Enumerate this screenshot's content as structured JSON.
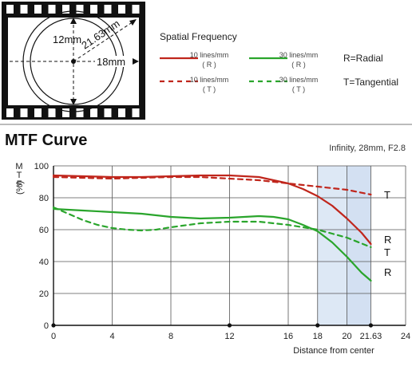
{
  "diagram": {
    "dim_12": "12mm",
    "dim_21_63": "21.63mm",
    "dim_18": "18mm"
  },
  "legend": {
    "title": "Spatial Frequency",
    "items": [
      {
        "label": "10 lines/mm",
        "sub": "( R )",
        "color": "#c0261c",
        "dash": "solid"
      },
      {
        "label": "30 lines/mm",
        "sub": "( R )",
        "color": "#2aa52c",
        "dash": "solid"
      },
      {
        "label": "10 lines/mm",
        "sub": "( T )",
        "color": "#c0261c",
        "dash": "dashed"
      },
      {
        "label": "30 lines/mm",
        "sub": "( T )",
        "color": "#2aa52c",
        "dash": "dashed"
      }
    ],
    "key_radial": "R=Radial",
    "key_tangential": "T=Tangential"
  },
  "chart_data": {
    "type": "line",
    "title": "MTF Curve",
    "subtitle": "Infinity, 28mm, F2.8",
    "xlabel": "Distance from center",
    "ylabel": "MTF (%)",
    "xlim": [
      0,
      24
    ],
    "ylim": [
      0,
      100
    ],
    "x_ticks": [
      0,
      4,
      8,
      12,
      16,
      18,
      20,
      21.63,
      24
    ],
    "x_tick_labels": [
      "0",
      "4",
      "8",
      "12",
      "16",
      "18",
      "20",
      "21.63",
      "24"
    ],
    "y_ticks": [
      0,
      20,
      40,
      60,
      80,
      100
    ],
    "y_tick_labels": [
      "0",
      "20",
      "40",
      "60",
      "80",
      "100"
    ],
    "x_dot_marks": [
      12,
      18,
      21.63
    ],
    "shaded_regions": [
      [
        18,
        20
      ],
      [
        20,
        21.63
      ]
    ],
    "grid": true,
    "series": [
      {
        "key": "r10",
        "color": "#c0261c",
        "dash": "solid",
        "end_label": "R",
        "x": [
          0,
          2,
          4,
          6,
          8,
          10,
          12,
          14,
          16,
          17,
          18,
          19,
          20,
          21,
          21.63
        ],
        "y": [
          94,
          93.5,
          93,
          93,
          93.5,
          94,
          94,
          93,
          89,
          85.5,
          81,
          75,
          67,
          58,
          51
        ]
      },
      {
        "key": "t10",
        "color": "#c0261c",
        "dash": "dashed",
        "end_label": "T",
        "x": [
          0,
          2,
          4,
          6,
          8,
          10,
          12,
          14,
          16,
          18,
          20,
          21.63
        ],
        "y": [
          93,
          92.5,
          92,
          92.5,
          93,
          93,
          92,
          91,
          89,
          87,
          85,
          82
        ]
      },
      {
        "key": "r30",
        "color": "#2aa52c",
        "dash": "solid",
        "end_label": "R",
        "x": [
          0,
          2,
          4,
          6,
          8,
          10,
          12,
          14,
          15,
          16,
          17,
          18,
          19,
          20,
          21,
          21.63
        ],
        "y": [
          73,
          72,
          71,
          70,
          68,
          67,
          67.5,
          68.5,
          68,
          66.5,
          63,
          59,
          52,
          43,
          33,
          28
        ]
      },
      {
        "key": "t30",
        "color": "#2aa52c",
        "dash": "dashed",
        "end_label": "T",
        "x": [
          0,
          1,
          2,
          3,
          4,
          5,
          6,
          7,
          8,
          10,
          12,
          14,
          16,
          18,
          19,
          20,
          21.63
        ],
        "y": [
          74,
          70,
          66,
          63,
          61,
          60,
          59.5,
          60,
          61.5,
          64,
          65,
          65,
          63,
          60,
          57.5,
          55,
          49
        ]
      }
    ]
  }
}
